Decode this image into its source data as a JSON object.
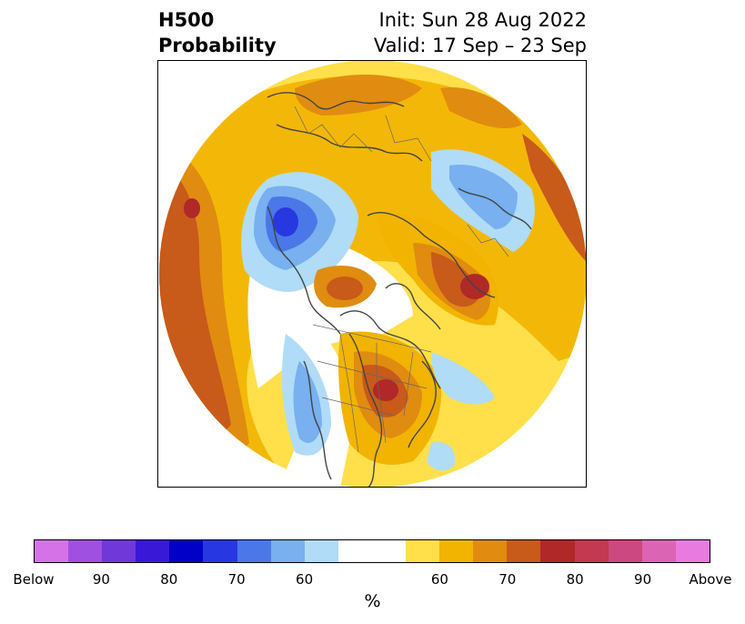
{
  "header": {
    "title_line1": "H500",
    "title_line2": "Probability",
    "init_text": "Init: Sun 28 Aug 2022",
    "valid_text": "Valid: 17 Sep – 23 Sep"
  },
  "colorbar": {
    "colors": [
      "#d672e8",
      "#a050e0",
      "#7038d8",
      "#3a18d8",
      "#0000c8",
      "#2838e0",
      "#4a78e8",
      "#78b0f0",
      "#b0dcf8",
      "#ffffff",
      "#ffffff",
      "#ffe04a",
      "#f2b400",
      "#e08c10",
      "#c85a1a",
      "#b02828",
      "#c43850",
      "#cc4880",
      "#dc64b4",
      "#e87ae0"
    ],
    "tick_labels": [
      "Below",
      "90",
      "80",
      "70",
      "60",
      "60",
      "70",
      "80",
      "90",
      "Above"
    ],
    "unit": "%"
  },
  "map": {
    "projection": "polar stereographic, North Pole",
    "field": "500 hPa height anomaly probability"
  }
}
